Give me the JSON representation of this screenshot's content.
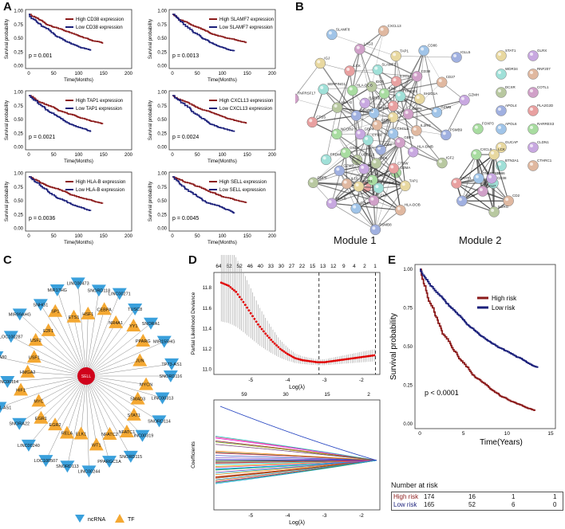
{
  "panel_labels": {
    "A": "A",
    "B": "B",
    "C": "C",
    "D": "D",
    "E": "E"
  },
  "km_panels": [
    {
      "high": "High CD38 expression",
      "low": "Low CD38 expression",
      "p": "p = 0.001"
    },
    {
      "high": "High SLAMF7 expression",
      "low": "Low SLAMF7 expression",
      "p": "p = 0.0013"
    },
    {
      "high": "High TAP1 expression",
      "low": "Low TAP1 expression",
      "p": "p = 0.0021"
    },
    {
      "high": "High CXCL13 expression",
      "low": "Low CXCL13 expression",
      "p": "p = 0.0024"
    },
    {
      "high": "High HLA-B expression",
      "low": "Low HLA-B expression",
      "p": "p = 0.0036"
    },
    {
      "high": "High SELL expression",
      "low": "Low SELL expression",
      "p": "p = 0.0045"
    }
  ],
  "km_axis": {
    "ylabel": "Survival probability",
    "xlabel": "Time(Months)",
    "yticks": [
      "0.00",
      "0.25",
      "0.50",
      "0.75",
      "1.00"
    ],
    "xticks": [
      "0",
      "50",
      "100",
      "150",
      "200"
    ]
  },
  "colors": {
    "high": "#8b1a1a",
    "low": "#1a1f7a",
    "tf": "#f4a832",
    "ncrna": "#3aa0dc",
    "hub": "#d0021b",
    "lasso_pt": "#e00000"
  },
  "network_b": {
    "main_nodes": [
      "IL2BP",
      "WNK3",
      "KIN2",
      "PARP9",
      "BATF2",
      "TRIM21",
      "CCR1",
      "IDO1",
      "GBP5",
      "C1orf54",
      "CXCL10",
      "CXCL9",
      "HLA-DOB",
      "SH2D1A",
      "GBP4",
      "SLAMF7",
      "IL2RG",
      "HLA-G",
      "CD38",
      "CD2",
      "LCK",
      "GZMB",
      "NCOR2",
      "TAP1",
      "HLA-DMB",
      "SERPING1",
      "CD27",
      "UBE2L6",
      "LAG3",
      "PSMB9",
      "CTSS",
      "CD86",
      "GZMA",
      "IGJ",
      "GZMH",
      "PRDM1",
      "CXCL13",
      "IGF2",
      "TNFRSF17",
      "IGLL5",
      "CTSW",
      "SLAMF8",
      "FOXP3"
    ],
    "side_nodes": [
      "STAT1",
      "GLRX",
      "WDR34",
      "RNF207",
      "DCXR",
      "COTL1",
      "APOL4",
      "PLA2G2D",
      "APOL6",
      "RARRES3",
      "GUCAP",
      "CLDN1",
      "BTN3A1",
      "CTHRC1"
    ],
    "module1_nodes": [
      "CXCL13",
      "CCR1",
      "CYBB",
      "SLAMF7",
      "IL10",
      "CD8",
      "CCL3",
      "GZMB",
      "CTSW",
      "GZMH",
      "GNLY",
      "TAP1",
      "HLA-B",
      "CTSS",
      "HLA-DOB",
      "GBP5",
      "GBP1",
      "PSMB8"
    ],
    "module2_nodes": [
      "CD38",
      "CD2",
      "IL2RG",
      "CD27",
      "ICOS",
      "STAT1",
      "TNFSF13B",
      "CXCL9",
      "LCK",
      "CD86"
    ],
    "module1": "Module 1",
    "module2": "Module 2"
  },
  "network_c": {
    "hub": "SELL",
    "tf_nodes": [
      "MYCN",
      "SMAD3",
      "STAT1",
      "NFATC1",
      "NFATC2",
      "WT1",
      "ELK1",
      "RELA",
      "EGR2",
      "EGR1",
      "MYC",
      "HIF1",
      "HMGA2",
      "USF1",
      "USF2",
      "E2F1",
      "SP1",
      "ETS1",
      "HSF1",
      "CEBPA",
      "NR4A1",
      "YY1",
      "PPARG",
      "JUN"
    ],
    "ncrna_nodes": [
      "SNORD116",
      "LINC00313",
      "SNORD114",
      "LINC00319",
      "SNORD115",
      "PPARGC1A",
      "LINC00244",
      "SNORD113",
      "LOC100507",
      "LINC00240",
      "SNORA22",
      "NR2F1-AS1",
      "LINC00114",
      "SNORA80",
      "LOC100287",
      "MIR99AHG",
      "SNHG1",
      "MIR17HG",
      "LINC00473",
      "SNORD118",
      "LINC00271",
      "TUSC8",
      "SNORA1",
      "MIR155HG",
      "TP73-AS1"
    ],
    "legend": {
      "ncrna": "ncRNA",
      "tf": "TF"
    }
  },
  "chart_data": [
    {
      "type": "line",
      "title": "",
      "xlabel": "Log(λ)",
      "ylabel": "Partial Likelihood Deviance",
      "top_ticks": [
        "64",
        "62",
        "52",
        "46",
        "40",
        "33",
        "30",
        "27",
        "22",
        "15",
        "13",
        "12",
        "9",
        "4",
        "2",
        "1"
      ],
      "xticks": [
        "-5",
        "-4",
        "-3",
        "-2"
      ],
      "yticks": [
        "11.0",
        "11.2",
        "11.4",
        "11.6",
        "11.8"
      ],
      "x": [
        -5.8,
        -5.6,
        -5.4,
        -5.2,
        -5.0,
        -4.8,
        -4.6,
        -4.4,
        -4.2,
        -4.0,
        -3.8,
        -3.6,
        -3.4,
        -3.2,
        -3.0,
        -2.8,
        -2.6,
        -2.4,
        -2.2,
        -2.0,
        -1.8,
        -1.6
      ],
      "y": [
        11.85,
        11.82,
        11.76,
        11.66,
        11.55,
        11.44,
        11.35,
        11.27,
        11.2,
        11.15,
        11.11,
        11.09,
        11.08,
        11.07,
        11.07,
        11.08,
        11.09,
        11.1,
        11.11,
        11.12,
        11.13,
        11.14
      ],
      "vlines": [
        -3.15,
        -1.62
      ]
    },
    {
      "type": "line",
      "xlabel": "Log(λ)",
      "ylabel": "Coefficients",
      "top_ticks": [
        "59",
        "30",
        "15",
        "2"
      ],
      "xticks": [
        "-5",
        "-4",
        "-3",
        "-2"
      ]
    },
    {
      "type": "line",
      "ylabel": "Survival probability",
      "xlabel": "Time(Years)",
      "xticks": [
        "0",
        "5",
        "10",
        "15"
      ],
      "yticks": [
        "0.00",
        "0.25",
        "0.50",
        "0.75",
        "1.00"
      ],
      "legend": [
        "High risk",
        "Low risk"
      ],
      "p": "p < 0.0001",
      "risk_title": "Number at risk",
      "risk_rows": [
        {
          "name": "High risk",
          "values": [
            "174",
            "16",
            "1",
            "1"
          ]
        },
        {
          "name": "Low risk",
          "values": [
            "165",
            "52",
            "6",
            "0"
          ]
        }
      ]
    }
  ]
}
